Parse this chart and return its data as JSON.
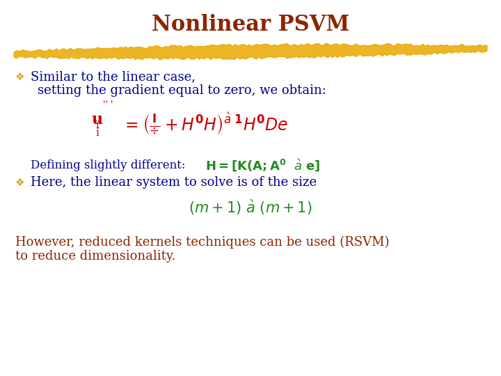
{
  "title": "Nonlinear PSVM",
  "title_color": "#8B2500",
  "title_fontsize": 22,
  "background_color": "#FFFFFF",
  "bullet_color": "#DAA520",
  "text_color_dark": "#00008B",
  "text_color_red": "#CC0000",
  "text_color_green": "#228B22",
  "text_color_brown": "#8B2500",
  "highlight_color": "#E8A800",
  "bullet1_line1": "Similar to the linear case,",
  "bullet1_line2": "setting the gradient equal to zero, we obtain:",
  "defining_text": "Defining slightly different:",
  "bullet2": "Here, the linear system to solve is of the size",
  "bottom_text1": "However, reduced kernels techniques can be used (RSVM)",
  "bottom_text2": "to reduce dimensionality."
}
